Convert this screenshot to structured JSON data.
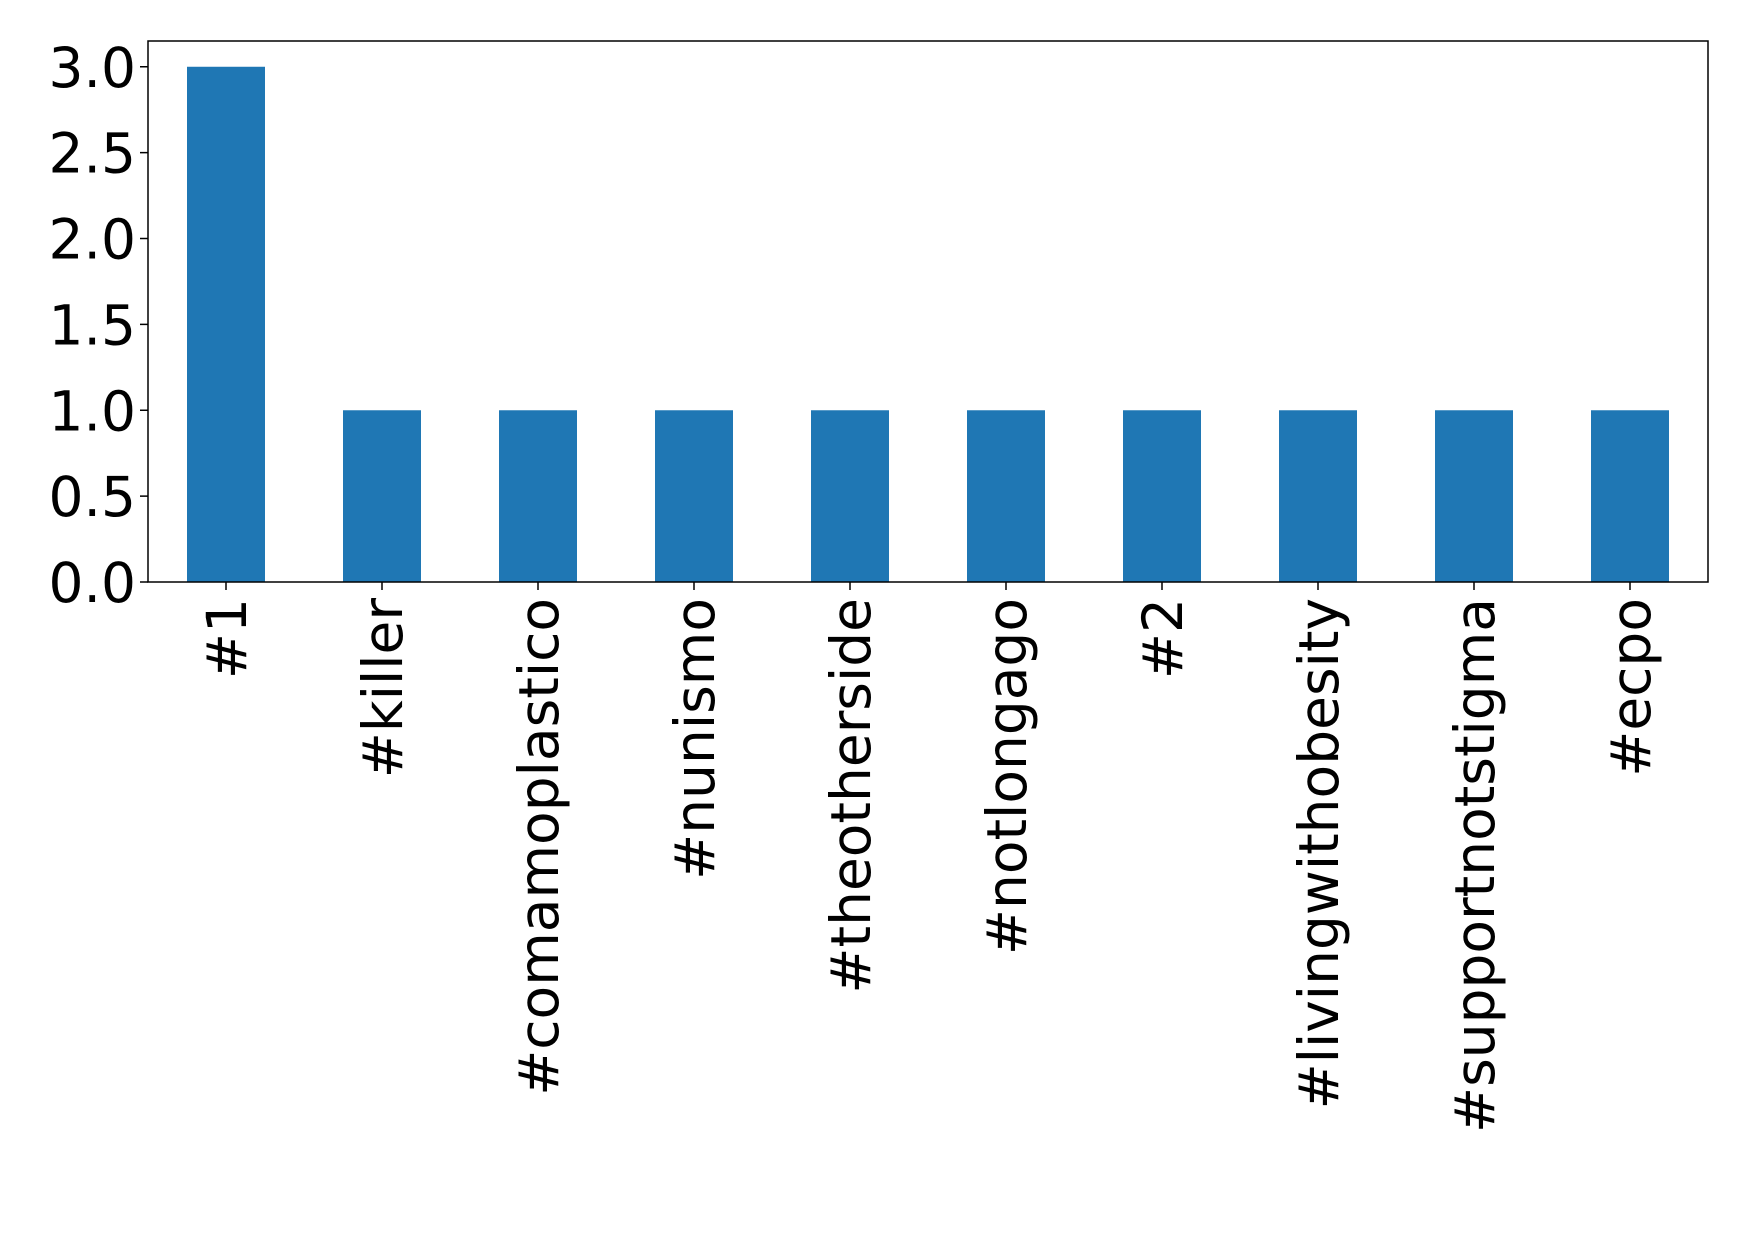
{
  "chart_data": {
    "type": "bar",
    "categories": [
      "#1",
      "#killer",
      "#comamoplastico",
      "#nunismo",
      "#theotherside",
      "#notlongago",
      "#2",
      "#livingwithobesity",
      "#supportnotstigma",
      "#ecpo"
    ],
    "values": [
      3,
      1,
      1,
      1,
      1,
      1,
      1,
      1,
      1,
      1
    ],
    "color": "#1f77b4",
    "ylim": [
      0,
      3.15
    ],
    "yticks": [
      {
        "value": 0,
        "label": "0.0"
      },
      {
        "value": 0.5,
        "label": "0.5"
      },
      {
        "value": 1,
        "label": "1.0"
      },
      {
        "value": 1.5,
        "label": "1.5"
      },
      {
        "value": 2,
        "label": "2.0"
      },
      {
        "value": 2.5,
        "label": "2.5"
      },
      {
        "value": 3,
        "label": "3.0"
      }
    ],
    "grid": false
  }
}
